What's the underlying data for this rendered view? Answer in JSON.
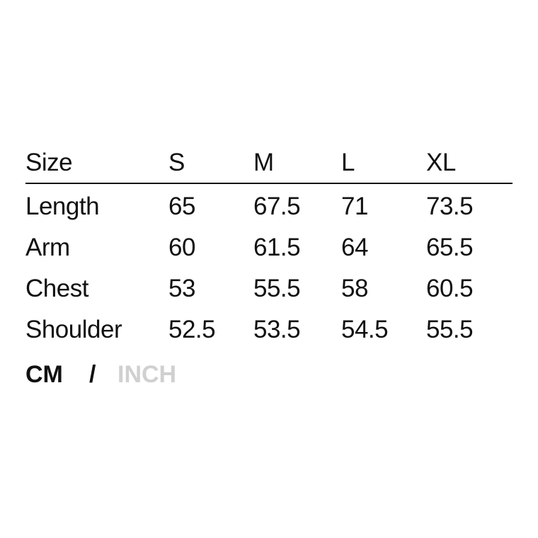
{
  "headers": [
    "Size",
    "S",
    "M",
    "L",
    "XL"
  ],
  "rows": [
    [
      "Length",
      "65",
      "67.5",
      "71",
      "73.5"
    ],
    [
      "Arm",
      "60",
      "61.5",
      "64",
      "65.5"
    ],
    [
      "Chest",
      "53",
      "55.5",
      "58",
      "60.5"
    ],
    [
      "Shoulder",
      "52.5",
      "53.5",
      "54.5",
      "55.5"
    ]
  ],
  "units": {
    "active": "CM",
    "separator": "/",
    "inactive": "INCH",
    "inactive_color": "#d0d0d0"
  }
}
